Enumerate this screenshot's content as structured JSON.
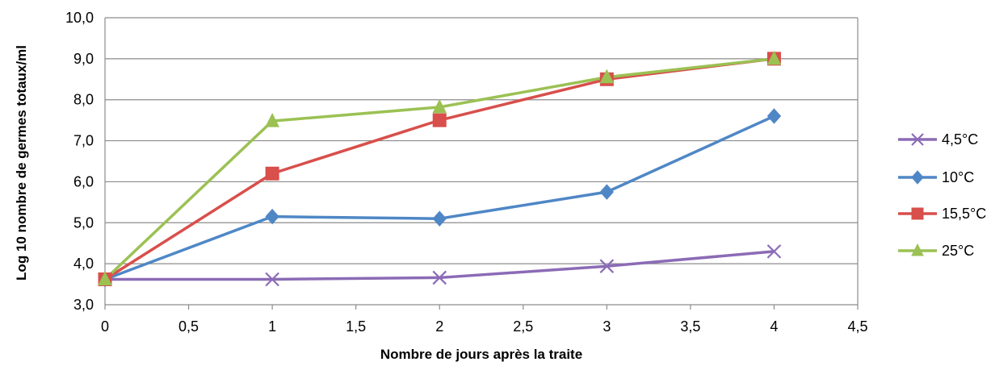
{
  "chart_data": {
    "type": "line",
    "title": "",
    "xlabel": "Nombre de jours après la traite",
    "ylabel": "Log 10 nombre de germes totaux/ml",
    "xlim": [
      0,
      4.5
    ],
    "ylim": [
      3.0,
      10.0
    ],
    "x_ticks": [
      0,
      0.5,
      1,
      1.5,
      2,
      2.5,
      3,
      3.5,
      4,
      4.5
    ],
    "x_tick_labels": [
      "0",
      "0,5",
      "1",
      "1,5",
      "2",
      "2,5",
      "3",
      "3,5",
      "4",
      "4,5"
    ],
    "y_ticks": [
      3,
      4,
      5,
      6,
      7,
      8,
      9,
      10
    ],
    "y_tick_labels": [
      "3,0",
      "4,0",
      "5,0",
      "6,0",
      "7,0",
      "8,0",
      "9,0",
      "10,0"
    ],
    "grid": "horizontal",
    "legend_position": "right",
    "series": [
      {
        "name": "4,5°C",
        "color": "#8b6bb6",
        "marker": "x",
        "x": [
          0,
          1,
          2,
          3,
          4
        ],
        "y": [
          3.62,
          3.62,
          3.66,
          3.94,
          4.3
        ]
      },
      {
        "name": "10°C",
        "color": "#4f87c6",
        "marker": "diamond",
        "x": [
          0,
          1,
          2,
          3,
          4
        ],
        "y": [
          3.62,
          5.15,
          5.1,
          5.75,
          7.6
        ]
      },
      {
        "name": "15,5°C",
        "color": "#d84f4b",
        "marker": "square",
        "x": [
          0,
          1,
          2,
          3,
          4
        ],
        "y": [
          3.62,
          6.2,
          7.5,
          8.5,
          9.0
        ]
      },
      {
        "name": "25°C",
        "color": "#9bc153",
        "marker": "triangle",
        "x": [
          0,
          1,
          2,
          3,
          4
        ],
        "y": [
          3.62,
          7.48,
          7.82,
          8.55,
          9.0
        ]
      }
    ]
  }
}
